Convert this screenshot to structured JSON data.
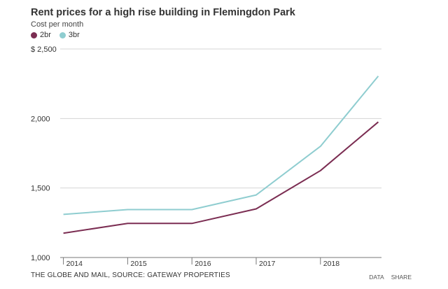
{
  "chart_data": {
    "type": "line",
    "title": "Rent prices for a high rise building in Flemingdon Park",
    "subtitle": "Cost per month",
    "x": [
      "2014",
      "2015",
      "2016",
      "2017",
      "2018"
    ],
    "x_values": [
      2014,
      2015,
      2016,
      2017,
      2018,
      2018.9
    ],
    "xlim": [
      2013.95,
      2018.95
    ],
    "ylim": [
      1000,
      2500
    ],
    "y_ticks": [
      1000,
      1500,
      2000,
      2500
    ],
    "y_tick_labels": [
      "1,000",
      "1,500",
      "2,000",
      "$ 2,500"
    ],
    "series": [
      {
        "name": "2br",
        "color": "#7b2d52",
        "values": [
          1175,
          1245,
          1245,
          1350,
          1625,
          1975
        ]
      },
      {
        "name": "3br",
        "color": "#8fcdd0",
        "values": [
          1310,
          1345,
          1345,
          1450,
          1800,
          2305
        ]
      }
    ],
    "grid": true,
    "legend_position": "top-left"
  },
  "footer": {
    "source": "THE GLOBE AND MAIL, SOURCE: GATEWAY PROPERTIES",
    "data_link": "DATA",
    "share_link": "SHARE"
  }
}
